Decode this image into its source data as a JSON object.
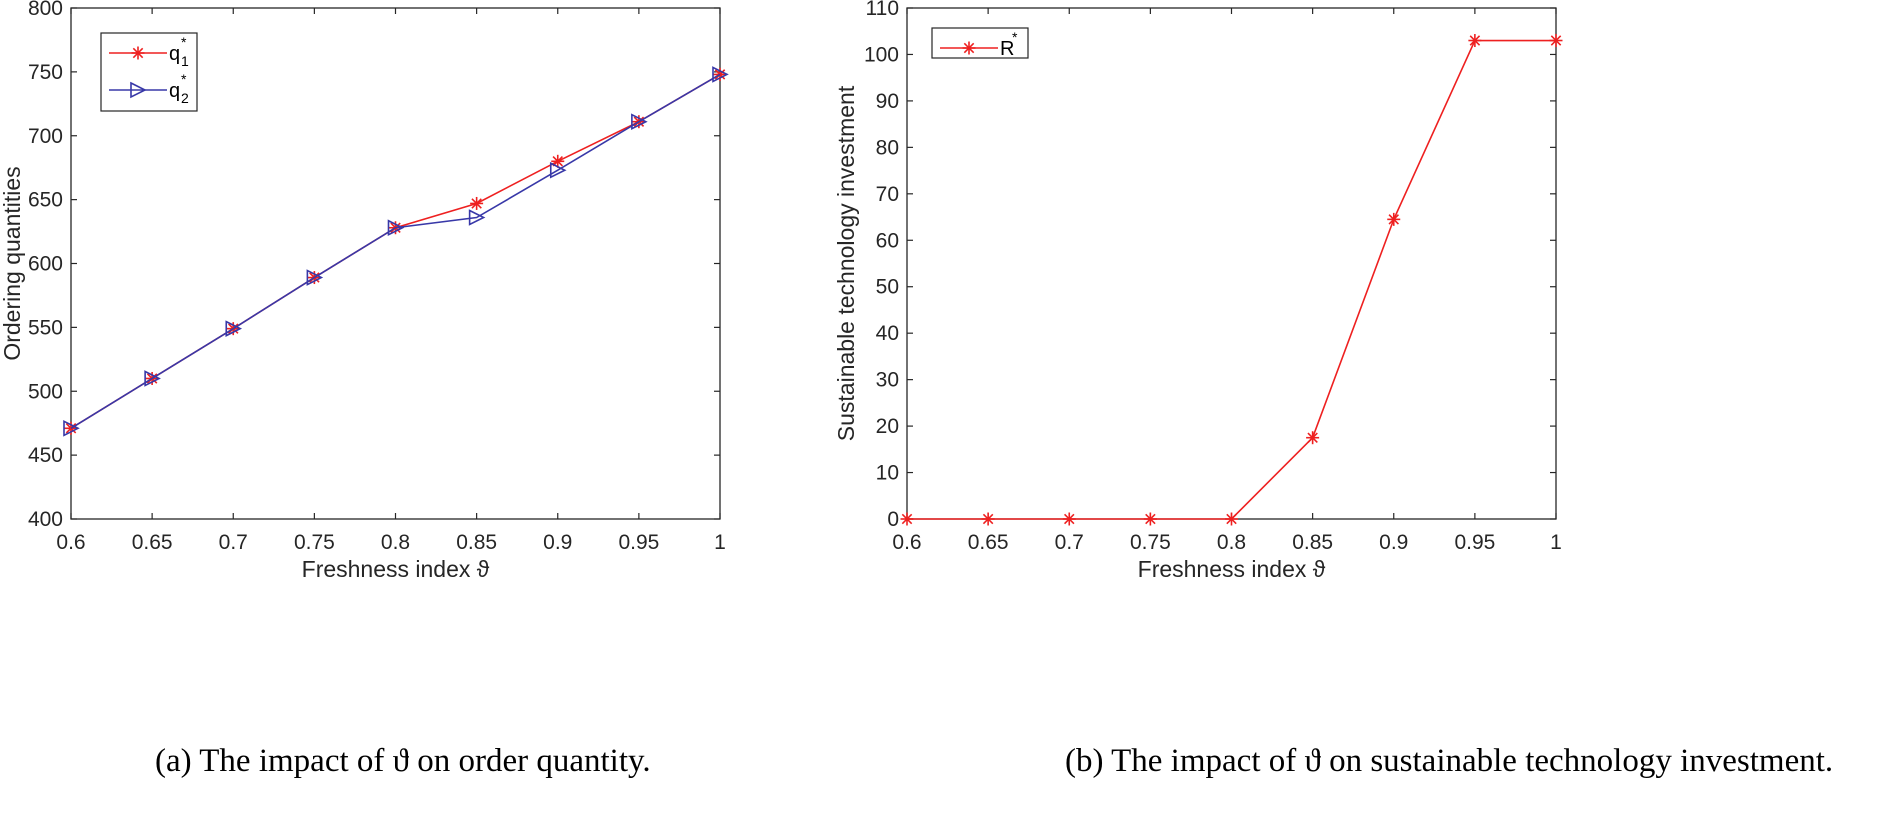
{
  "captions": {
    "a": "(a)  The impact of ϑ on order quantity.",
    "b": "(b)  The impact of ϑ on sustainable technology investment."
  },
  "colors": {
    "red": "#ee2020",
    "blue": "#3838a8",
    "axis": "#262626"
  },
  "chart_data": [
    {
      "type": "line",
      "xlabel": "Freshness index ϑ",
      "ylabel": "Ordering quantities",
      "xlim": [
        0.6,
        1
      ],
      "ylim": [
        400,
        800
      ],
      "xticks": [
        0.6,
        0.65,
        0.7,
        0.75,
        0.8,
        0.85,
        0.9,
        0.95,
        1
      ],
      "xtick_labels": [
        "0.6",
        "0.65",
        "0.7",
        "0.75",
        "0.8",
        "0.85",
        "0.9",
        "0.95",
        "1"
      ],
      "yticks": [
        400,
        450,
        500,
        550,
        600,
        650,
        700,
        750,
        800
      ],
      "ytick_labels": [
        "400",
        "450",
        "500",
        "550",
        "600",
        "650",
        "700",
        "750",
        "800"
      ],
      "x": [
        0.6,
        0.65,
        0.7,
        0.75,
        0.8,
        0.85,
        0.9,
        0.95,
        1
      ],
      "legend_position": "top-left",
      "series": [
        {
          "name": "q1*",
          "label": "q",
          "sub": "1",
          "sup": "*",
          "marker": "asterisk",
          "color": "#ee2020",
          "values": [
            471,
            510,
            549,
            589,
            628,
            647,
            680,
            711,
            748
          ]
        },
        {
          "name": "q2*",
          "label": "q",
          "sub": "2",
          "sup": "*",
          "marker": "triangle-right",
          "color": "#3838a8",
          "values": [
            471,
            510,
            549,
            589,
            628,
            636,
            673,
            711,
            748
          ]
        }
      ]
    },
    {
      "type": "line",
      "xlabel": "Freshness index ϑ",
      "ylabel": "Sustainable technology investment",
      "xlim": [
        0.6,
        1
      ],
      "ylim": [
        0,
        110
      ],
      "xticks": [
        0.6,
        0.65,
        0.7,
        0.75,
        0.8,
        0.85,
        0.9,
        0.95,
        1
      ],
      "xtick_labels": [
        "0.6",
        "0.65",
        "0.7",
        "0.75",
        "0.8",
        "0.85",
        "0.9",
        "0.95",
        "1"
      ],
      "yticks": [
        0,
        10,
        20,
        30,
        40,
        50,
        60,
        70,
        80,
        90,
        100,
        110
      ],
      "ytick_labels": [
        "0",
        "10",
        "20",
        "30",
        "40",
        "50",
        "60",
        "70",
        "80",
        "90",
        "100",
        "110"
      ],
      "x": [
        0.6,
        0.65,
        0.7,
        0.75,
        0.8,
        0.85,
        0.9,
        0.95,
        1
      ],
      "legend_position": "top-left",
      "series": [
        {
          "name": "R*",
          "label": "R",
          "sub": "",
          "sup": "*",
          "marker": "asterisk",
          "color": "#ee2020",
          "values": [
            0,
            0,
            0,
            0,
            0,
            17.5,
            64.5,
            103,
            103
          ]
        }
      ]
    }
  ]
}
